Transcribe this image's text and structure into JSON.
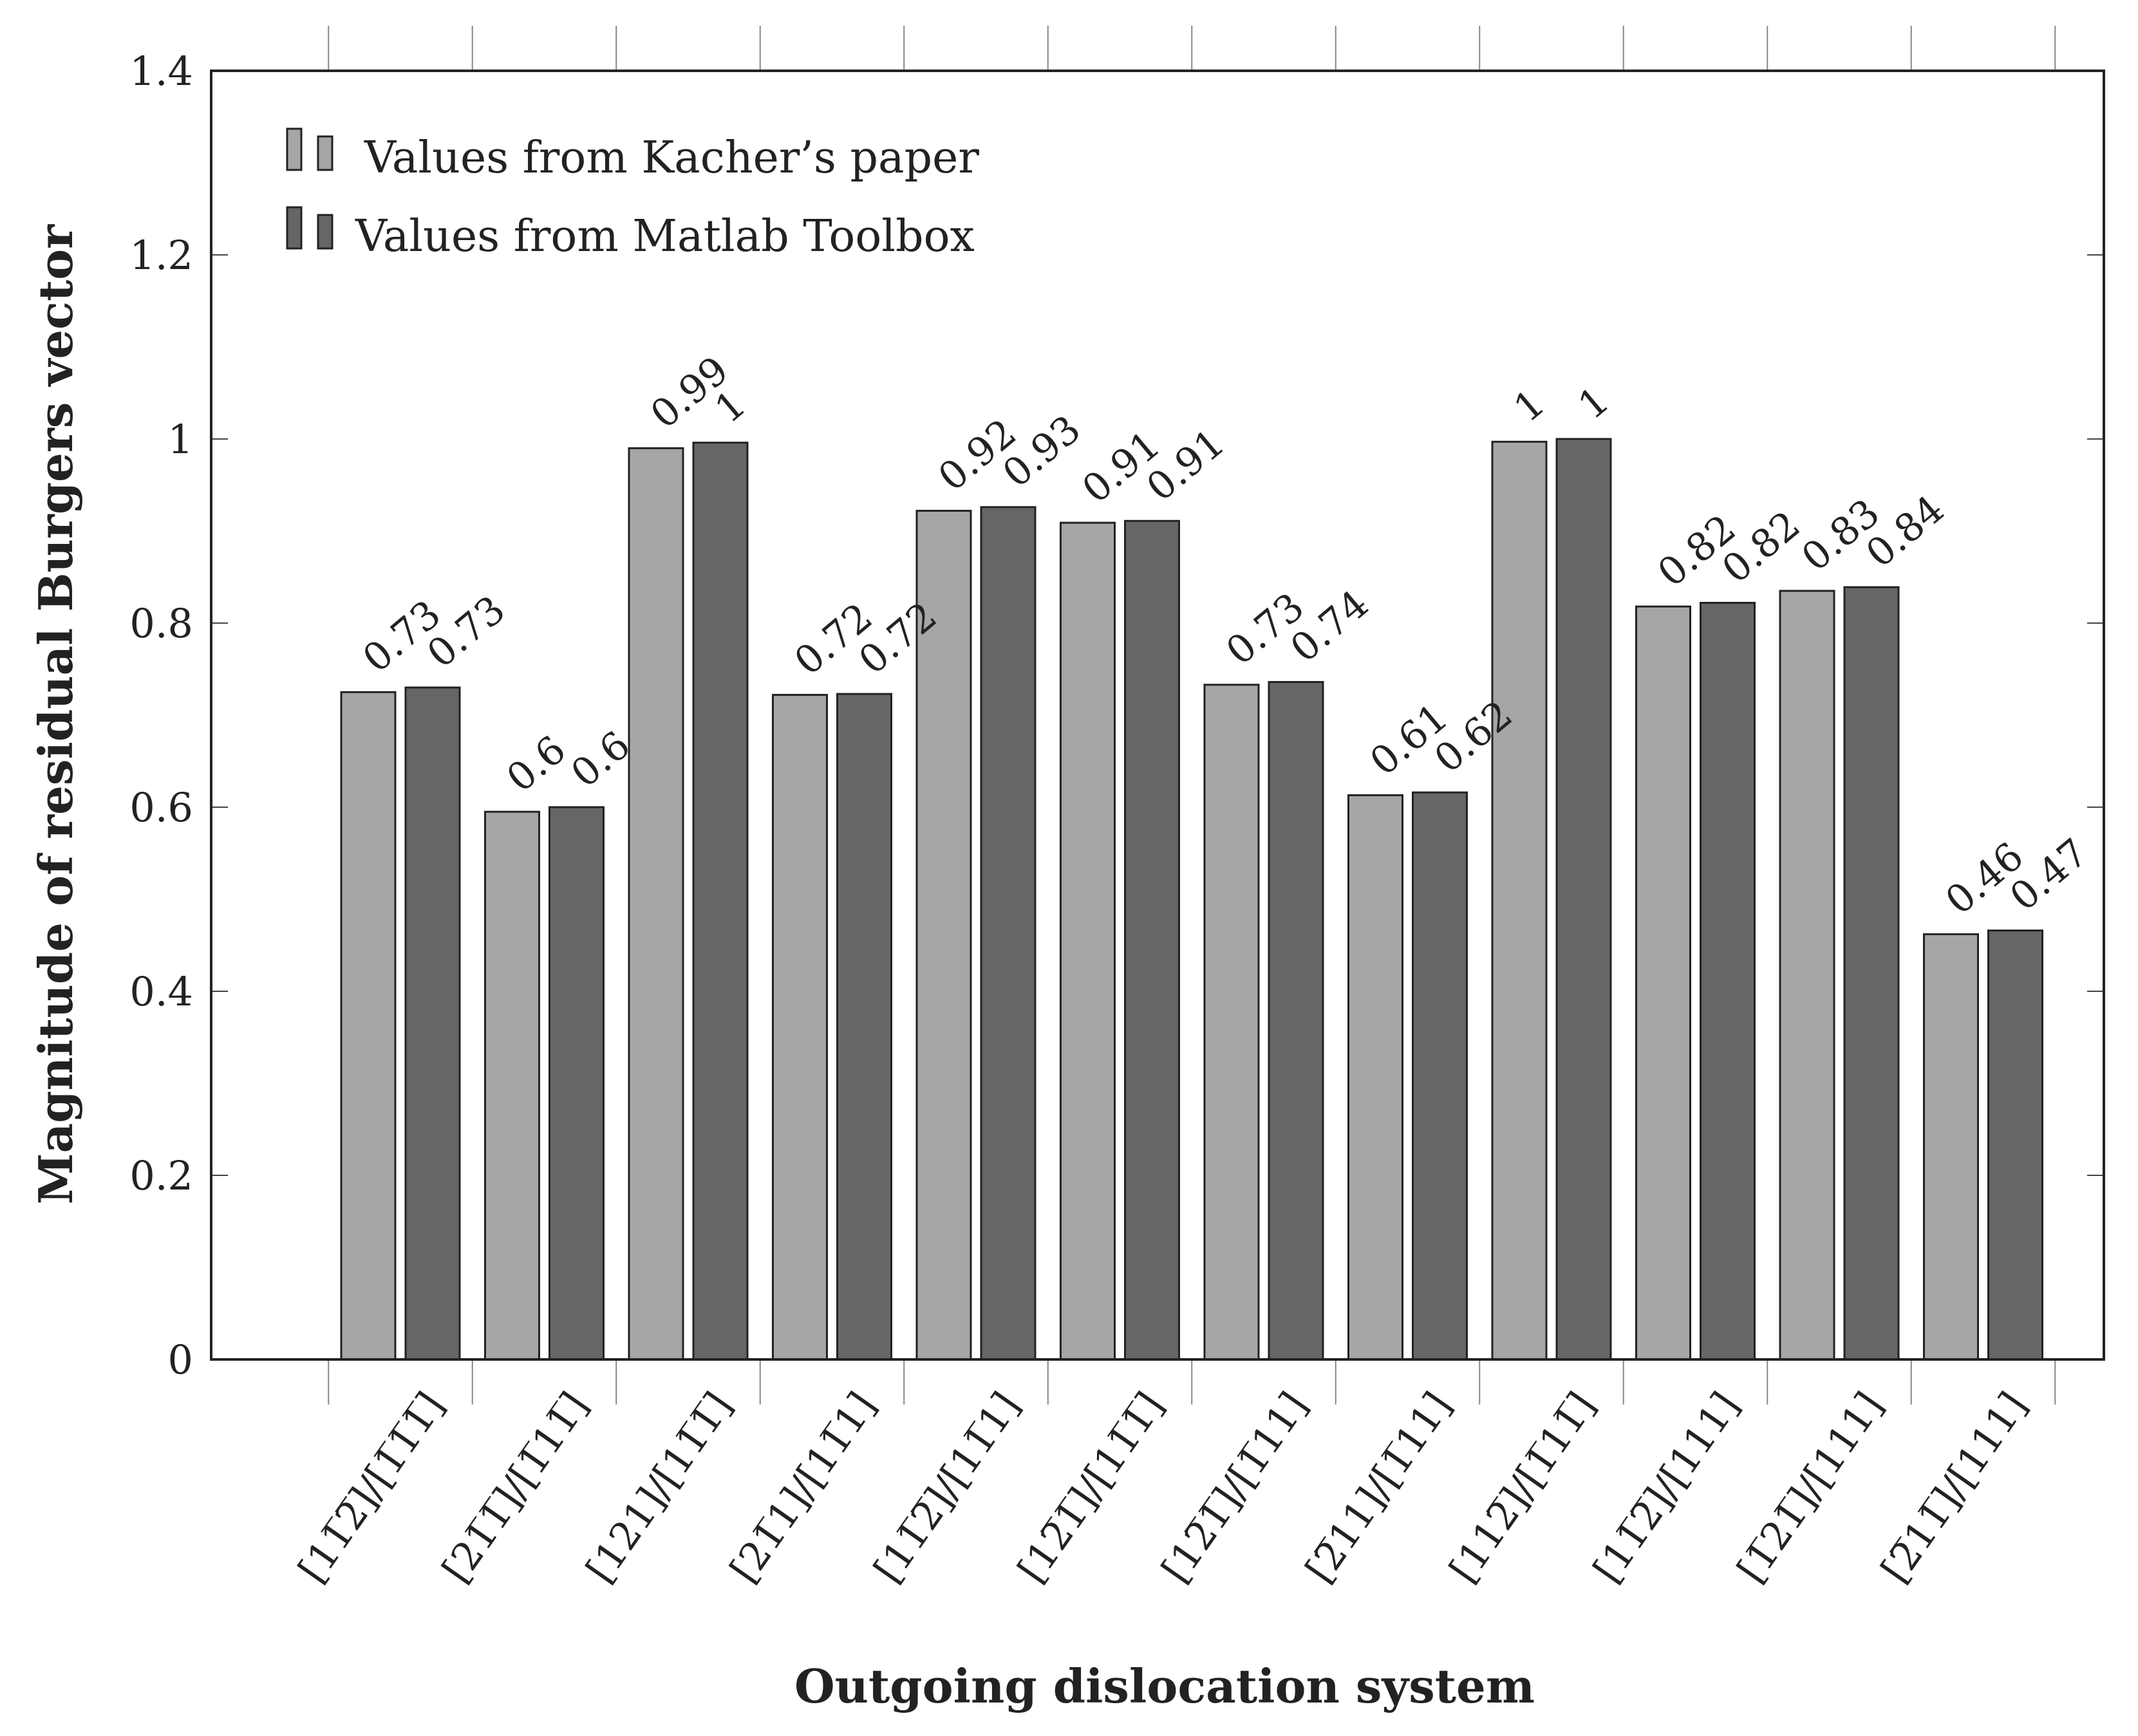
{
  "chart_data": {
    "type": "bar",
    "title": "",
    "xlabel": "Outgoing dislocation system",
    "ylabel": "Magnitude of residual Burgers vector",
    "ylim": [
      0,
      1.4
    ],
    "yticks": [
      "0",
      "0.2",
      "0.4",
      "0.6",
      "0.8",
      "1",
      "1.2",
      "1.4"
    ],
    "grid": false,
    "legend_position": "top-left",
    "categories": [
      "[11̅2̅]/[1̅1̅1̅]",
      "[21̅1̅]/[1̅11̅]",
      "[121]/[11̅1̅]",
      "[21̅1]/[11̅1]",
      "[11̅2̅]/[11̅1]",
      "[12̅1̅]/[11̅1̅]",
      "[12̅1̅]/[1̅11]",
      "[2̅11]/[1̅11]",
      "[112̅]/[1̅11̅]",
      "[11̅2̅]/[111]",
      "[1̅21̅]/[111]",
      "[2̅11̅]/[111]"
    ],
    "series": [
      {
        "name": "Values from Kacher’s paper",
        "color": "#a6a6a6",
        "values": [
          0.725,
          0.595,
          0.99,
          0.722,
          0.922,
          0.909,
          0.733,
          0.613,
          0.997,
          0.818,
          0.835,
          0.462
        ],
        "labels": [
          "0.73",
          "0.6",
          "0.99",
          "0.72",
          "0.92",
          "0.91",
          "0.73",
          "0.61",
          "1",
          "0.82",
          "0.83",
          "0.46"
        ]
      },
      {
        "name": "Values from Matlab Toolbox",
        "color": "#666666",
        "values": [
          0.73,
          0.6,
          0.996,
          0.723,
          0.926,
          0.911,
          0.736,
          0.616,
          1.0,
          0.822,
          0.839,
          0.466
        ],
        "labels": [
          "0.73",
          "0.6",
          "1",
          "0.72",
          "0.93",
          "0.91",
          "0.74",
          "0.62",
          "1",
          "0.82",
          "0.84",
          "0.47"
        ]
      }
    ]
  }
}
